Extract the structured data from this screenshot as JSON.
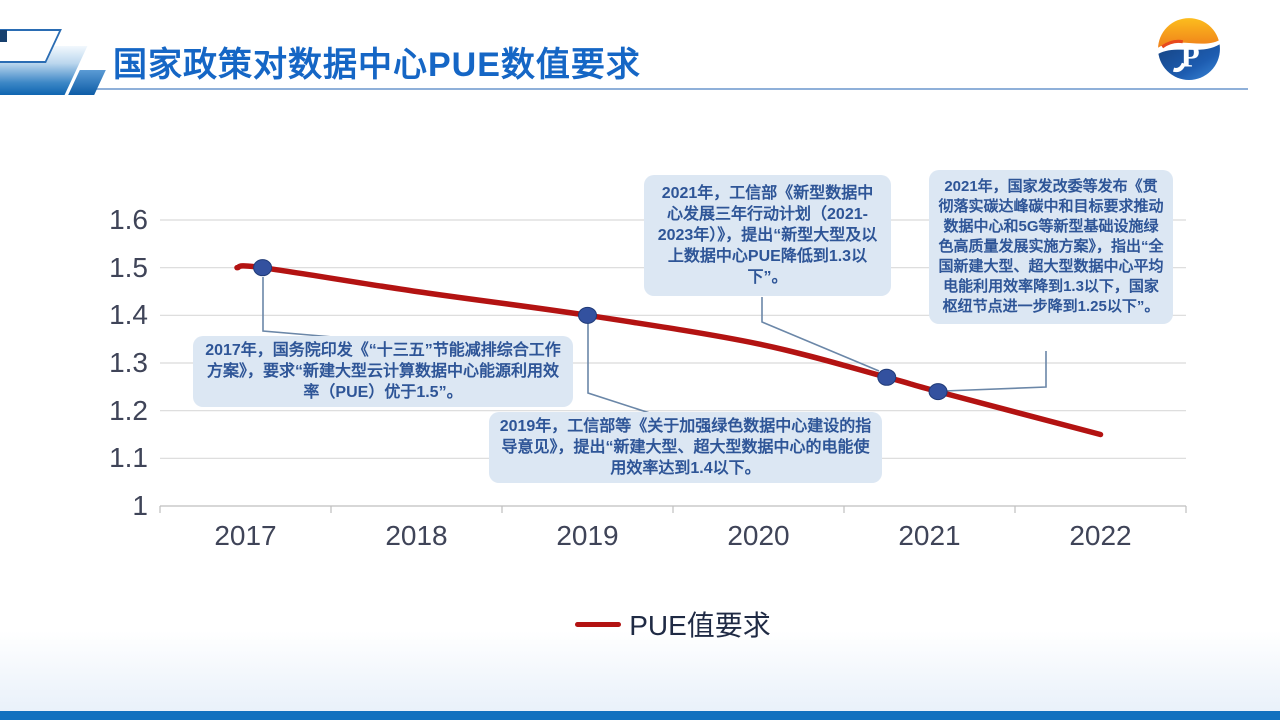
{
  "slide": {
    "title": "国家政策对数据中心PUE数值要求",
    "logo_glyph": "P"
  },
  "colors": {
    "title_blue": "#1566c5",
    "line_red": "#b31312",
    "marker_navy": "#33519f",
    "callout_bg": "#dce7f3",
    "callout_text": "#2e5597",
    "gridline": "#d9d9d9",
    "axis": "#bfbfbf",
    "bottom_bar": "#1171bf"
  },
  "chart_data": {
    "type": "line",
    "title": "",
    "xlabel": "",
    "ylabel": "",
    "x_ticks": [
      "2017",
      "2018",
      "2019",
      "2020",
      "2021",
      "2022"
    ],
    "y_ticks": [
      "1.6",
      "1.5",
      "1.4",
      "1.3",
      "1.2",
      "1.1",
      "1"
    ],
    "x_range": [
      2016.5,
      2022.5
    ],
    "ylim": [
      1.0,
      1.6
    ],
    "grid": true,
    "legend": "PUE值要求",
    "legend_position": "bottom",
    "series": [
      {
        "name": "PUE值要求",
        "color": "#b31312",
        "marker_color": "#33519f",
        "points": [
          {
            "x": 2016.95,
            "y": 1.5,
            "marker": false
          },
          {
            "x": 2017.1,
            "y": 1.5,
            "marker": true
          },
          {
            "x": 2018,
            "y": 1.45,
            "marker": false
          },
          {
            "x": 2019,
            "y": 1.4,
            "marker": true
          },
          {
            "x": 2020,
            "y": 1.34,
            "marker": false
          },
          {
            "x": 2020.75,
            "y": 1.27,
            "marker": true
          },
          {
            "x": 2021.05,
            "y": 1.24,
            "marker": true
          },
          {
            "x": 2022,
            "y": 1.15,
            "marker": false
          }
        ]
      }
    ],
    "annotations": [
      {
        "id": "a2017",
        "text": "2017年，国务院印发《“十三五”节能减排综合工作方案》，要求“新建大型云计算数据中心能源利用效率（PUE）优于1.5”。"
      },
      {
        "id": "a2019",
        "text": "2019年，工信部等《关于加强绿色数据中心建设的指导意见》，提出“新建大型、超大型数据中心的电能使用效率达到1.4以下。"
      },
      {
        "id": "a2021miit",
        "text": "2021年，工信部《新型数据中心发展三年行动计划（2021-2023年）》，提出“新型大型及以上数据中心PUE降低到1.3以下”。"
      },
      {
        "id": "a2021ndrc",
        "text": "2021年，国家发改委等发布《贯彻落实碳达峰碳中和目标要求推动数据中心和5G等新型基础设施绿色高质量发展实施方案》，指出“全国新建大型、超大型数据中心平均电能利用效率降到1.3以下，国家枢纽节点进一步降到1.25以下”。"
      }
    ]
  }
}
